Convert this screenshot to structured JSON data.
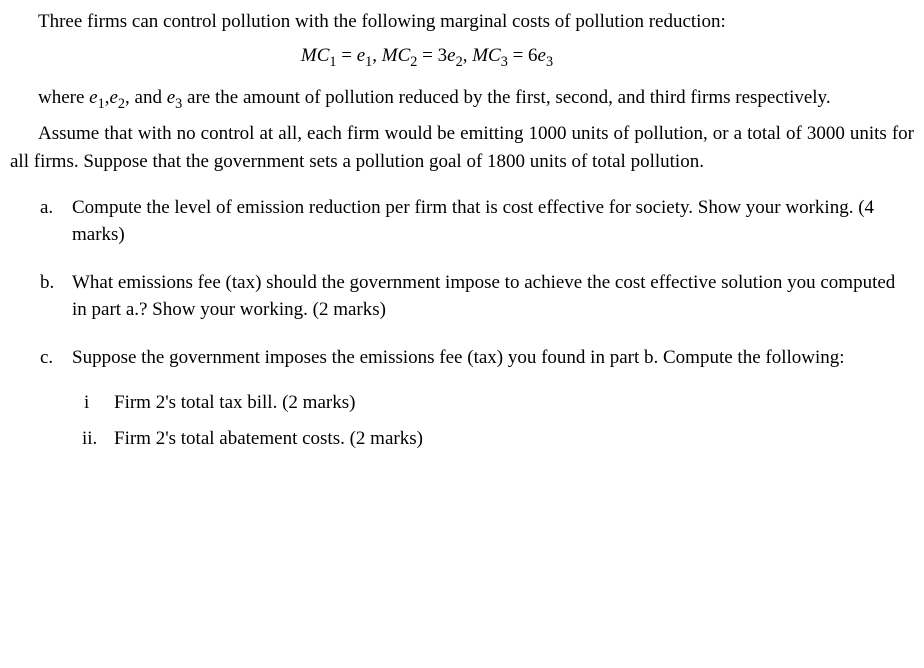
{
  "p1": "Three firms can control pollution with the following marginal costs of pollution reduction:",
  "p2a": "where ",
  "p2b": ", and ",
  "p2c": " are the amount of pollution reduced by the first, second, and third firms respectively.",
  "p3": "Assume that with no control at all, each firm would be emitting 1000 units of pollution, or a total of 3000 units for all firms. Suppose that the government sets a pollution goal of 1800 units of total pollution.",
  "items": {
    "a": {
      "marker": "a.",
      "text": "Compute the level of emission reduction per firm that is cost effective for society. Show your working. (4 marks)"
    },
    "b": {
      "marker": "b.",
      "text": "What emissions fee (tax) should the government impose to achieve the cost effective solution you computed in part a.? Show your working. (2 marks)"
    },
    "c": {
      "marker": "c.",
      "text": "Suppose the government imposes the emissions fee (tax) you found in part b. Compute the following:",
      "sub": {
        "i": {
          "marker": "i",
          "text": "Firm 2's total tax bill. (2 marks)"
        },
        "ii": {
          "marker": "ii.",
          "text": "Firm 2's total abatement costs. (2 marks)"
        }
      }
    }
  },
  "eq": {
    "MC": "MC",
    "e": "e",
    "eq": " = ",
    "s1": "1",
    "s2": "2",
    "s3": "3",
    "c2": "3",
    "c3": "6",
    "comma": ", "
  },
  "inline": {
    "e1": "e",
    "e2": "e",
    "e3": "e",
    "s1": "1",
    "s2": "2",
    "s3": "3",
    "comma": ","
  }
}
